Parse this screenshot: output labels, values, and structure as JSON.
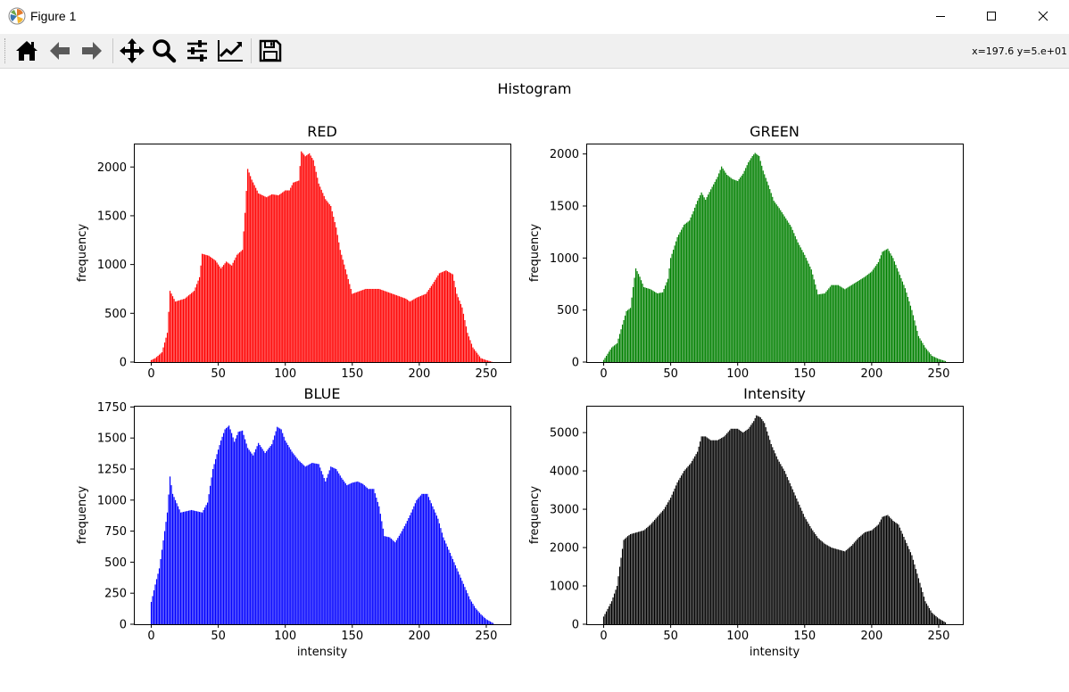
{
  "window": {
    "title": "Figure 1",
    "controls": [
      "minimize",
      "maximize",
      "close"
    ]
  },
  "toolbar": {
    "buttons": [
      {
        "name": "home",
        "icon": "home-icon"
      },
      {
        "name": "back",
        "icon": "arrow-left-icon"
      },
      {
        "name": "forward",
        "icon": "arrow-right-icon"
      },
      {
        "name": "pan",
        "icon": "move-icon"
      },
      {
        "name": "zoom",
        "icon": "magnifier-icon"
      },
      {
        "name": "configure-subplots",
        "icon": "sliders-icon"
      },
      {
        "name": "edit-axis",
        "icon": "line-chart-icon"
      },
      {
        "name": "save",
        "icon": "floppy-disk-icon"
      }
    ],
    "coordinates": "x=197.6 y=5.e+01"
  },
  "figure": {
    "suptitle": "Histogram"
  },
  "chart_data": [
    {
      "type": "bar",
      "title": "RED",
      "xlabel": "",
      "ylabel": "frequency",
      "color": "#ff0000",
      "xlim": [
        -13,
        268
      ],
      "ylim": [
        0,
        2240
      ],
      "xticks": [
        "0",
        "50",
        "100",
        "150",
        "200",
        "250"
      ],
      "yticks": [
        "0",
        "500",
        "1000",
        "1500",
        "2000"
      ],
      "x_anchors": [
        0,
        3,
        8,
        12,
        14,
        18,
        25,
        32,
        36,
        38,
        43,
        48,
        52,
        56,
        60,
        64,
        68,
        70,
        72,
        75,
        80,
        86,
        90,
        95,
        100,
        103,
        106,
        110,
        112,
        115,
        118,
        121,
        125,
        130,
        134,
        138,
        141,
        145,
        150,
        160,
        170,
        180,
        190,
        193,
        198,
        205,
        210,
        215,
        220,
        225,
        228,
        232,
        236,
        240,
        246,
        250,
        255
      ],
      "y_anchors": [
        20,
        40,
        100,
        300,
        730,
        620,
        650,
        730,
        870,
        1110,
        1090,
        1040,
        960,
        1030,
        990,
        1100,
        1150,
        1530,
        1980,
        1870,
        1730,
        1690,
        1720,
        1710,
        1760,
        1760,
        1840,
        1860,
        2160,
        2110,
        2140,
        2070,
        1830,
        1670,
        1600,
        1380,
        1150,
        950,
        700,
        750,
        750,
        700,
        650,
        620,
        660,
        700,
        800,
        910,
        940,
        900,
        700,
        560,
        300,
        150,
        40,
        20,
        0
      ]
    },
    {
      "type": "bar",
      "title": "GREEN",
      "xlabel": "",
      "ylabel": "frequency",
      "color": "#008000",
      "xlim": [
        -13,
        268
      ],
      "ylim": [
        0,
        2100
      ],
      "xticks": [
        "0",
        "50",
        "100",
        "150",
        "200",
        "250"
      ],
      "yticks": [
        "0",
        "500",
        "1000",
        "1500",
        "2000"
      ],
      "x_anchors": [
        0,
        3,
        6,
        10,
        14,
        17,
        20,
        22,
        24,
        27,
        30,
        35,
        40,
        44,
        48,
        50,
        55,
        60,
        64,
        67,
        70,
        73,
        76,
        80,
        85,
        88,
        92,
        96,
        100,
        104,
        108,
        111,
        113,
        116,
        119,
        123,
        127,
        131,
        135,
        140,
        145,
        150,
        155,
        160,
        165,
        170,
        175,
        180,
        185,
        190,
        195,
        200,
        205,
        208,
        212,
        216,
        220,
        225,
        230,
        235,
        240,
        245,
        250,
        255
      ],
      "y_anchors": [
        20,
        80,
        140,
        180,
        360,
        490,
        520,
        720,
        900,
        820,
        720,
        700,
        660,
        670,
        800,
        1000,
        1200,
        1320,
        1360,
        1450,
        1550,
        1630,
        1560,
        1660,
        1780,
        1880,
        1800,
        1760,
        1740,
        1810,
        1920,
        1980,
        2010,
        1980,
        1840,
        1700,
        1550,
        1480,
        1400,
        1300,
        1150,
        1030,
        890,
        650,
        660,
        740,
        740,
        700,
        740,
        780,
        820,
        870,
        960,
        1060,
        1090,
        1000,
        870,
        710,
        500,
        250,
        140,
        60,
        30,
        10
      ]
    },
    {
      "type": "bar",
      "title": "BLUE",
      "xlabel": "intensity",
      "ylabel": "frequency",
      "color": "#0000ff",
      "xlim": [
        -13,
        268
      ],
      "ylim": [
        0,
        1760
      ],
      "xticks": [
        "0",
        "50",
        "100",
        "150",
        "200",
        "250"
      ],
      "yticks": [
        "0",
        "250",
        "500",
        "750",
        "1000",
        "1250",
        "1500",
        "1750"
      ],
      "x_anchors": [
        0,
        3,
        6,
        10,
        12,
        14,
        16,
        18,
        22,
        30,
        38,
        42,
        46,
        49,
        52,
        55,
        58,
        60,
        62,
        65,
        68,
        72,
        76,
        80,
        85,
        90,
        94,
        97,
        100,
        105,
        110,
        115,
        120,
        125,
        130,
        134,
        138,
        142,
        146,
        150,
        154,
        158,
        162,
        166,
        170,
        174,
        178,
        182,
        186,
        190,
        194,
        198,
        202,
        206,
        210,
        214,
        218,
        222,
        226,
        230,
        234,
        238,
        242,
        246,
        250,
        255
      ],
      "y_anchors": [
        180,
        320,
        450,
        750,
        900,
        1190,
        1050,
        1000,
        900,
        920,
        900,
        980,
        1250,
        1370,
        1480,
        1570,
        1600,
        1540,
        1470,
        1550,
        1560,
        1420,
        1360,
        1460,
        1380,
        1450,
        1590,
        1570,
        1480,
        1390,
        1320,
        1270,
        1300,
        1290,
        1150,
        1270,
        1250,
        1180,
        1120,
        1140,
        1150,
        1130,
        1090,
        1090,
        950,
        710,
        700,
        660,
        730,
        810,
        900,
        1000,
        1050,
        1050,
        950,
        850,
        700,
        600,
        500,
        400,
        300,
        200,
        130,
        80,
        40,
        10
      ]
    },
    {
      "type": "bar",
      "title": "Intensity",
      "xlabel": "intensity",
      "ylabel": "frequency",
      "color": "#000000",
      "xlim": [
        -13,
        268
      ],
      "ylim": [
        0,
        5700
      ],
      "xticks": [
        "0",
        "50",
        "100",
        "150",
        "200",
        "250"
      ],
      "yticks": [
        "0",
        "1000",
        "2000",
        "3000",
        "4000",
        "5000"
      ],
      "x_anchors": [
        0,
        3,
        6,
        10,
        12,
        15,
        18,
        20,
        25,
        30,
        35,
        40,
        45,
        50,
        55,
        60,
        65,
        70,
        73,
        76,
        80,
        85,
        90,
        95,
        100,
        104,
        108,
        112,
        114,
        117,
        120,
        125,
        130,
        135,
        140,
        145,
        150,
        155,
        160,
        165,
        170,
        175,
        180,
        185,
        190,
        195,
        200,
        205,
        208,
        212,
        216,
        220,
        225,
        230,
        235,
        240,
        245,
        250,
        255
      ],
      "y_anchors": [
        200,
        400,
        600,
        1000,
        1500,
        2200,
        2300,
        2350,
        2400,
        2450,
        2600,
        2800,
        3000,
        3300,
        3700,
        4000,
        4200,
        4500,
        4900,
        4900,
        4800,
        4800,
        4900,
        5100,
        5100,
        5000,
        5100,
        5300,
        5450,
        5400,
        5250,
        4700,
        4300,
        4000,
        3600,
        3200,
        2800,
        2500,
        2250,
        2100,
        2000,
        1950,
        1900,
        2050,
        2250,
        2400,
        2450,
        2600,
        2800,
        2850,
        2700,
        2600,
        2200,
        1800,
        1200,
        600,
        300,
        150,
        50
      ]
    }
  ]
}
